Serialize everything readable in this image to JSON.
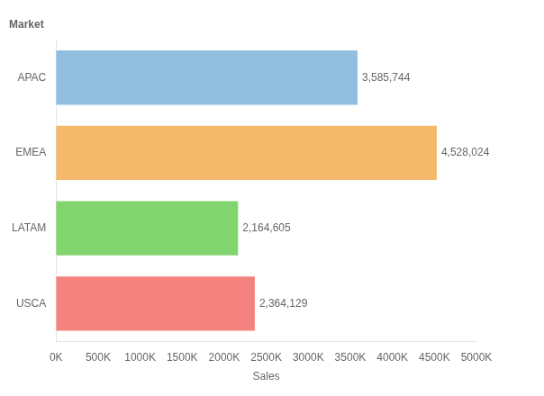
{
  "chart_data": {
    "type": "bar",
    "orientation": "horizontal",
    "title": "Market",
    "x_label": "Sales",
    "categories": [
      "USCA",
      "LATAM",
      "EMEA",
      "APAC"
    ],
    "values": [
      2364129,
      2164605,
      4528024,
      3585744
    ],
    "value_labels": [
      "2,364,129",
      "2,164,605",
      "4,528,024",
      "3,585,744"
    ],
    "data_labels": true,
    "colors": [
      "#f4827e",
      "#82d46f",
      "#f5b96b",
      "#92bfe0"
    ],
    "xlim": [
      0,
      5000000
    ],
    "xticks": [
      {
        "value": 0,
        "label": "0K"
      },
      {
        "value": 500000,
        "label": "500K"
      },
      {
        "value": 1000000,
        "label": "1000K"
      },
      {
        "value": 1500000,
        "label": "1500K"
      },
      {
        "value": 2000000,
        "label": "2000K"
      },
      {
        "value": 2500000,
        "label": "2500K"
      },
      {
        "value": 3000000,
        "label": "3000K"
      },
      {
        "value": 3500000,
        "label": "3500K"
      },
      {
        "value": 4000000,
        "label": "4000K"
      },
      {
        "value": 4500000,
        "label": "4500K"
      },
      {
        "value": 5000000,
        "label": "5000K"
      }
    ],
    "grid": false,
    "legend": false
  }
}
